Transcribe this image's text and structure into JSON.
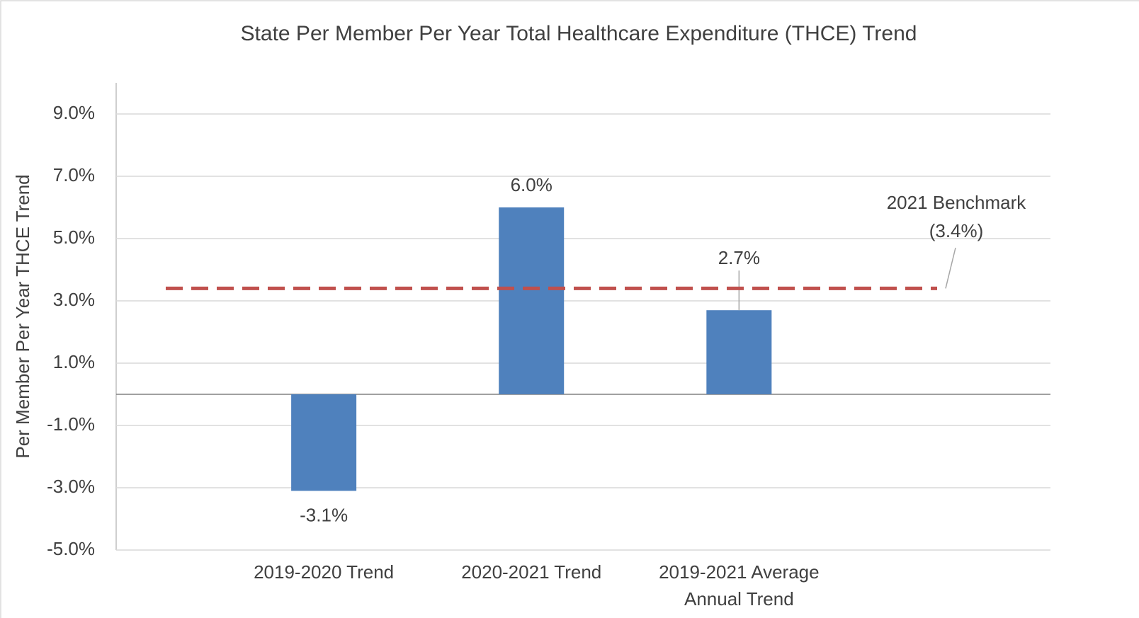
{
  "chart_data": {
    "type": "bar",
    "title": "State Per Member Per Year Total Healthcare Expenditure (THCE) Trend",
    "y_label": "Per Member Per Year THCE Trend",
    "categories": [
      "2019-2020 Trend",
      "2020-2021 Trend",
      "2019-2021 Average Annual Trend"
    ],
    "values": [
      -3.1,
      6.0,
      2.7
    ],
    "value_labels": [
      "-3.1%",
      "6.0%",
      "2.7%"
    ],
    "color": "#4f81bd",
    "ylim": [
      -5,
      10
    ],
    "yticks": [
      {
        "value": -5,
        "label": "-5.0%"
      },
      {
        "value": -3,
        "label": "-3.0%"
      },
      {
        "value": -1,
        "label": "-1.0%"
      },
      {
        "value": 1,
        "label": "1.0%"
      },
      {
        "value": 3,
        "label": "3.0%"
      },
      {
        "value": 5,
        "label": "5.0%"
      },
      {
        "value": 7,
        "label": "7.0%"
      },
      {
        "value": 9,
        "label": "9.0%"
      }
    ],
    "grid": true,
    "benchmark": {
      "value": 3.4,
      "label_lines": [
        "2021 Benchmark",
        "(3.4%)"
      ],
      "color": "#c0504d"
    }
  }
}
